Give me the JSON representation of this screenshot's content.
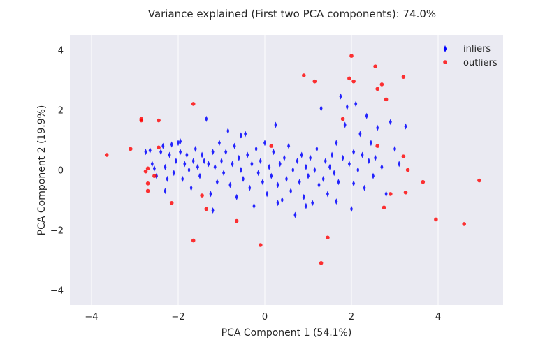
{
  "chart_data": {
    "type": "scatter",
    "title": "Variance explained (First two PCA components): 74.0%",
    "xlabel": "PCA Component 1 (54.1%)",
    "ylabel": "PCA Component 2 (19.9%)",
    "xlim": [
      -4.5,
      5.5
    ],
    "ylim": [
      -4.5,
      4.5
    ],
    "xticks": [
      -4,
      -2,
      0,
      2,
      4
    ],
    "yticks": [
      -4,
      -2,
      0,
      2,
      4
    ],
    "xtick_labels": [
      "−4",
      "−2",
      "0",
      "2",
      "4"
    ],
    "ytick_labels": [
      "−4",
      "−2",
      "0",
      "2",
      "4"
    ],
    "grid": true,
    "legend_position": "top-right",
    "colors": {
      "background": "#eaeaf2",
      "grid": "#ffffff",
      "inliers": "#0000ff",
      "outliers": "#ff0000"
    },
    "series": [
      {
        "name": "inliers",
        "marker": "thin-diamond",
        "color": "#0000ff",
        "points": [
          [
            -2.75,
            0.6
          ],
          [
            -2.65,
            0.65
          ],
          [
            -2.6,
            0.2
          ],
          [
            -2.55,
            0.05
          ],
          [
            -2.5,
            -0.2
          ],
          [
            -2.4,
            0.6
          ],
          [
            -2.35,
            0.8
          ],
          [
            -2.3,
            0.1
          ],
          [
            -2.25,
            -0.3
          ],
          [
            -2.2,
            0.5
          ],
          [
            -2.15,
            0.85
          ],
          [
            -2.1,
            -0.1
          ],
          [
            -2.05,
            0.3
          ],
          [
            -2.0,
            0.9
          ],
          [
            -1.95,
            0.6
          ],
          [
            -1.9,
            -0.3
          ],
          [
            -1.85,
            0.2
          ],
          [
            -1.8,
            0.5
          ],
          [
            -1.75,
            0.0
          ],
          [
            -1.7,
            -0.6
          ],
          [
            -1.65,
            0.3
          ],
          [
            -1.6,
            0.7
          ],
          [
            -1.55,
            0.1
          ],
          [
            -1.5,
            -0.2
          ],
          [
            -1.45,
            0.5
          ],
          [
            -1.4,
            0.3
          ],
          [
            -1.35,
            1.7
          ],
          [
            -1.3,
            0.2
          ],
          [
            -1.25,
            -0.8
          ],
          [
            -1.2,
            0.6
          ],
          [
            -1.15,
            0.1
          ],
          [
            -1.1,
            -0.4
          ],
          [
            -1.05,
            0.9
          ],
          [
            -1.0,
            0.3
          ],
          [
            -0.95,
            -0.1
          ],
          [
            -0.9,
            0.6
          ],
          [
            -0.85,
            1.3
          ],
          [
            -0.8,
            -0.5
          ],
          [
            -0.75,
            0.2
          ],
          [
            -0.7,
            0.8
          ],
          [
            -0.65,
            -0.9
          ],
          [
            -0.6,
            0.4
          ],
          [
            -0.55,
            0.0
          ],
          [
            -0.5,
            -0.3
          ],
          [
            -0.45,
            1.2
          ],
          [
            -0.4,
            0.5
          ],
          [
            -0.35,
            -0.6
          ],
          [
            -0.3,
            0.2
          ],
          [
            -0.25,
            -1.2
          ],
          [
            -0.2,
            0.7
          ],
          [
            -0.15,
            -0.1
          ],
          [
            -0.1,
            0.3
          ],
          [
            -0.05,
            -0.4
          ],
          [
            0.0,
            0.9
          ],
          [
            0.05,
            -0.8
          ],
          [
            0.1,
            0.1
          ],
          [
            0.15,
            -0.2
          ],
          [
            0.2,
            0.6
          ],
          [
            0.25,
            1.5
          ],
          [
            0.3,
            -0.5
          ],
          [
            0.35,
            0.2
          ],
          [
            0.4,
            -1.0
          ],
          [
            0.45,
            0.4
          ],
          [
            0.5,
            -0.3
          ],
          [
            0.55,
            0.8
          ],
          [
            0.6,
            -0.7
          ],
          [
            0.65,
            0.0
          ],
          [
            0.7,
            -1.5
          ],
          [
            0.75,
            0.3
          ],
          [
            0.8,
            -0.4
          ],
          [
            0.85,
            0.5
          ],
          [
            0.9,
            -0.9
          ],
          [
            0.95,
            0.1
          ],
          [
            1.0,
            -0.2
          ],
          [
            1.05,
            0.4
          ],
          [
            1.1,
            -1.1
          ],
          [
            1.15,
            0.0
          ],
          [
            1.2,
            0.7
          ],
          [
            1.25,
            -0.5
          ],
          [
            1.3,
            2.05
          ],
          [
            1.35,
            -0.3
          ],
          [
            1.4,
            0.3
          ],
          [
            1.45,
            -0.8
          ],
          [
            1.5,
            0.1
          ],
          [
            1.55,
            0.5
          ],
          [
            1.6,
            -0.1
          ],
          [
            1.65,
            0.9
          ],
          [
            1.7,
            -0.4
          ],
          [
            1.75,
            2.45
          ],
          [
            1.8,
            0.4
          ],
          [
            1.85,
            1.5
          ],
          [
            1.9,
            2.1
          ],
          [
            1.95,
            0.2
          ],
          [
            2.0,
            -1.3
          ],
          [
            2.05,
            0.6
          ],
          [
            2.1,
            2.2
          ],
          [
            2.15,
            0.0
          ],
          [
            2.2,
            1.2
          ],
          [
            2.25,
            0.5
          ],
          [
            2.3,
            -0.6
          ],
          [
            2.35,
            1.8
          ],
          [
            2.4,
            0.3
          ],
          [
            2.45,
            0.9
          ],
          [
            2.5,
            -0.2
          ],
          [
            2.55,
            0.4
          ],
          [
            2.6,
            1.4
          ],
          [
            2.7,
            0.1
          ],
          [
            2.8,
            -0.8
          ],
          [
            2.9,
            1.6
          ],
          [
            3.0,
            0.7
          ],
          [
            3.1,
            0.2
          ],
          [
            3.25,
            1.45
          ],
          [
            -2.3,
            -0.7
          ],
          [
            -1.95,
            0.95
          ],
          [
            -1.2,
            -1.35
          ],
          [
            -0.55,
            1.15
          ],
          [
            0.3,
            -1.1
          ],
          [
            0.95,
            -1.2
          ],
          [
            1.65,
            -1.05
          ],
          [
            2.05,
            -0.45
          ]
        ]
      },
      {
        "name": "outliers",
        "marker": "circle",
        "color": "#ff0000",
        "points": [
          [
            -3.65,
            0.5
          ],
          [
            -3.1,
            0.7
          ],
          [
            -2.85,
            1.65
          ],
          [
            -2.85,
            1.7
          ],
          [
            -2.75,
            -0.05
          ],
          [
            -2.7,
            0.05
          ],
          [
            -2.7,
            -0.45
          ],
          [
            -2.7,
            -0.7
          ],
          [
            -2.55,
            -0.2
          ],
          [
            -2.45,
            0.75
          ],
          [
            -2.45,
            1.65
          ],
          [
            -2.15,
            -1.1
          ],
          [
            -1.65,
            2.2
          ],
          [
            -1.65,
            -2.35
          ],
          [
            -1.45,
            -0.85
          ],
          [
            -1.35,
            -1.3
          ],
          [
            -0.65,
            -1.7
          ],
          [
            -0.1,
            -2.5
          ],
          [
            0.15,
            0.8
          ],
          [
            0.9,
            3.15
          ],
          [
            1.15,
            2.95
          ],
          [
            1.3,
            -3.1
          ],
          [
            1.45,
            -2.25
          ],
          [
            1.8,
            1.7
          ],
          [
            1.95,
            3.05
          ],
          [
            2.0,
            3.8
          ],
          [
            2.05,
            2.95
          ],
          [
            2.55,
            3.45
          ],
          [
            2.6,
            2.7
          ],
          [
            2.7,
            2.85
          ],
          [
            2.8,
            2.35
          ],
          [
            3.2,
            3.1
          ],
          [
            2.6,
            0.8
          ],
          [
            3.2,
            0.45
          ],
          [
            3.3,
            0.0
          ],
          [
            2.9,
            -0.8
          ],
          [
            2.75,
            -1.25
          ],
          [
            3.25,
            -0.75
          ],
          [
            3.65,
            -0.4
          ],
          [
            3.95,
            -1.65
          ],
          [
            4.6,
            -1.8
          ],
          [
            4.95,
            -0.35
          ]
        ]
      }
    ]
  }
}
